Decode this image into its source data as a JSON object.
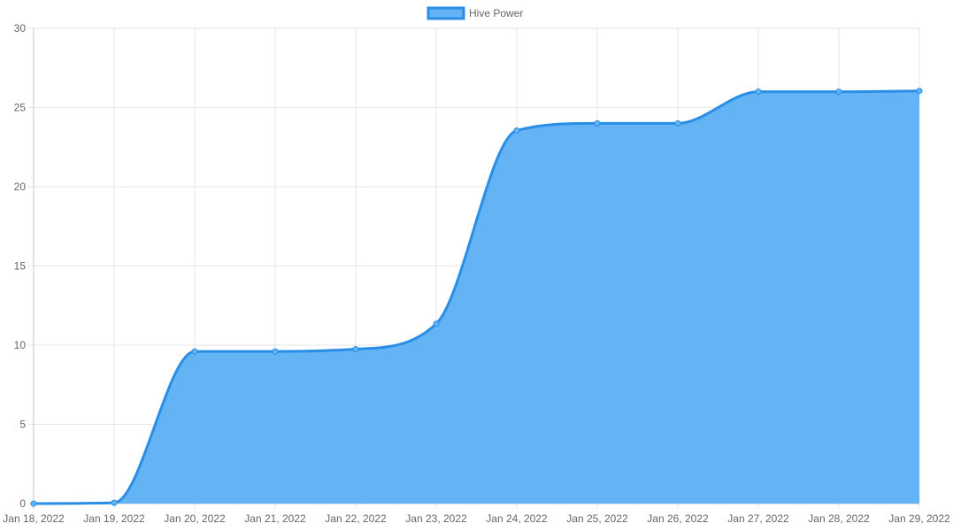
{
  "chart_data": {
    "type": "area",
    "x": [
      "Jan 18, 2022",
      "Jan 19, 2022",
      "Jan 20, 2022",
      "Jan 21, 2022",
      "Jan 22, 2022",
      "Jan 23, 2022",
      "Jan 24, 2022",
      "Jan 25, 2022",
      "Jan 26, 2022",
      "Jan 27, 2022",
      "Jan 28, 2022",
      "Jan 29, 2022"
    ],
    "series": [
      {
        "name": "Hive Power",
        "values": [
          0,
          0.05,
          9.6,
          9.6,
          9.75,
          11.35,
          23.55,
          24.0,
          24.0,
          26.0,
          26.0,
          26.05
        ],
        "line_color": "#2a8ee6",
        "fill_color": "#63b3f5"
      }
    ],
    "ylim": [
      0,
      30
    ],
    "y_ticks": [
      0,
      5,
      10,
      15,
      20,
      25,
      30
    ],
    "xlabel": "",
    "ylabel": "",
    "title": "",
    "grid": true,
    "legend_position": "top-center"
  }
}
